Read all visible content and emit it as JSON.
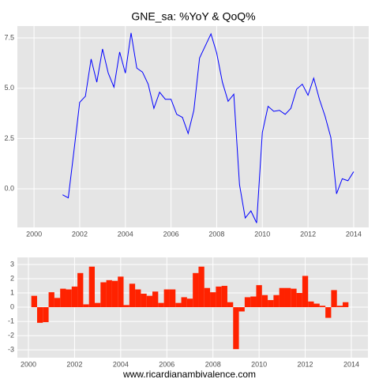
{
  "footer": "www.ricardianambivalence.com",
  "chart_data": [
    {
      "type": "line",
      "title": "GNE_sa: %YoY & QoQ%",
      "color": "#0000ff",
      "x": [
        2001.25,
        2001.5,
        2001.75,
        2002,
        2002.25,
        2002.5,
        2002.75,
        2003,
        2003.25,
        2003.5,
        2003.75,
        2004,
        2004.25,
        2004.5,
        2004.75,
        2005,
        2005.25,
        2005.5,
        2005.75,
        2006,
        2006.25,
        2006.5,
        2006.75,
        2007,
        2007.25,
        2007.5,
        2007.75,
        2008,
        2008.25,
        2008.5,
        2008.75,
        2009,
        2009.25,
        2009.5,
        2009.75,
        2010,
        2010.25,
        2010.5,
        2010.75,
        2011,
        2011.25,
        2011.5,
        2011.75,
        2012,
        2012.25,
        2012.5,
        2012.75,
        2013,
        2013.25,
        2013.5,
        2013.75,
        2014
      ],
      "values": [
        -0.3,
        -0.45,
        1.9,
        4.3,
        4.6,
        6.45,
        5.3,
        6.95,
        5.75,
        5.05,
        6.8,
        5.75,
        7.75,
        6.0,
        5.8,
        5.2,
        4.0,
        4.8,
        4.45,
        4.45,
        3.7,
        3.55,
        2.75,
        3.9,
        6.5,
        7.1,
        7.7,
        6.75,
        5.3,
        4.35,
        4.7,
        0.2,
        -1.45,
        -1.1,
        -1.7,
        2.8,
        4.1,
        3.85,
        3.9,
        3.7,
        4.0,
        4.95,
        5.2,
        4.65,
        5.5,
        4.45,
        3.6,
        2.55,
        -0.25,
        0.5,
        0.4,
        0.85
      ],
      "xlim": [
        1999.27,
        2014.66
      ],
      "xticks": [
        2000,
        2002,
        2004,
        2006,
        2008,
        2010,
        2012,
        2014
      ],
      "ylim": [
        -1.92,
        8.09
      ],
      "yticks": [
        {
          "value": 0,
          "label": "0.0"
        },
        2.5,
        {
          "value": 5,
          "label": "5.0"
        },
        7.5
      ],
      "grid": true
    },
    {
      "type": "bar",
      "color": "#ff2200",
      "x": [
        2000.25,
        2000.5,
        2000.75,
        2001,
        2001.25,
        2001.5,
        2001.75,
        2002,
        2002.25,
        2002.5,
        2002.75,
        2003,
        2003.25,
        2003.5,
        2003.75,
        2004,
        2004.25,
        2004.5,
        2004.75,
        2005,
        2005.25,
        2005.5,
        2005.75,
        2006,
        2006.25,
        2006.5,
        2006.75,
        2007,
        2007.25,
        2007.5,
        2007.75,
        2008,
        2008.25,
        2008.5,
        2008.75,
        2009,
        2009.25,
        2009.5,
        2009.75,
        2010,
        2010.25,
        2010.5,
        2010.75,
        2011,
        2011.25,
        2011.5,
        2011.75,
        2012,
        2012.25,
        2012.5,
        2012.75,
        2013,
        2013.25,
        2013.5,
        2013.75
      ],
      "values": [
        0.8,
        -1.1,
        -1.05,
        1.05,
        0.65,
        1.3,
        1.25,
        1.45,
        2.4,
        0.2,
        2.85,
        0.3,
        1.75,
        1.9,
        1.85,
        2.15,
        0.15,
        1.65,
        1.25,
        0.95,
        0.8,
        1.1,
        0.3,
        1.25,
        1.25,
        0.3,
        0.7,
        0.6,
        2.4,
        2.85,
        1.35,
        1.05,
        1.45,
        1.5,
        0.35,
        -2.95,
        -0.3,
        0.7,
        0.75,
        1.55,
        0.85,
        0.5,
        0.85,
        1.35,
        1.35,
        1.3,
        1.0,
        2.2,
        0.4,
        0.25,
        0.1,
        -0.75,
        1.2,
        0.1,
        0.35
      ],
      "xlim": [
        1999.52,
        2014.72
      ],
      "xticks": [
        2000,
        2002,
        2004,
        2006,
        2008,
        2010,
        2012,
        2014
      ],
      "ylim": [
        -3.55,
        3.5
      ],
      "yticks": [
        -3,
        -2,
        -1,
        0,
        1,
        2,
        3
      ],
      "grid": true
    }
  ]
}
